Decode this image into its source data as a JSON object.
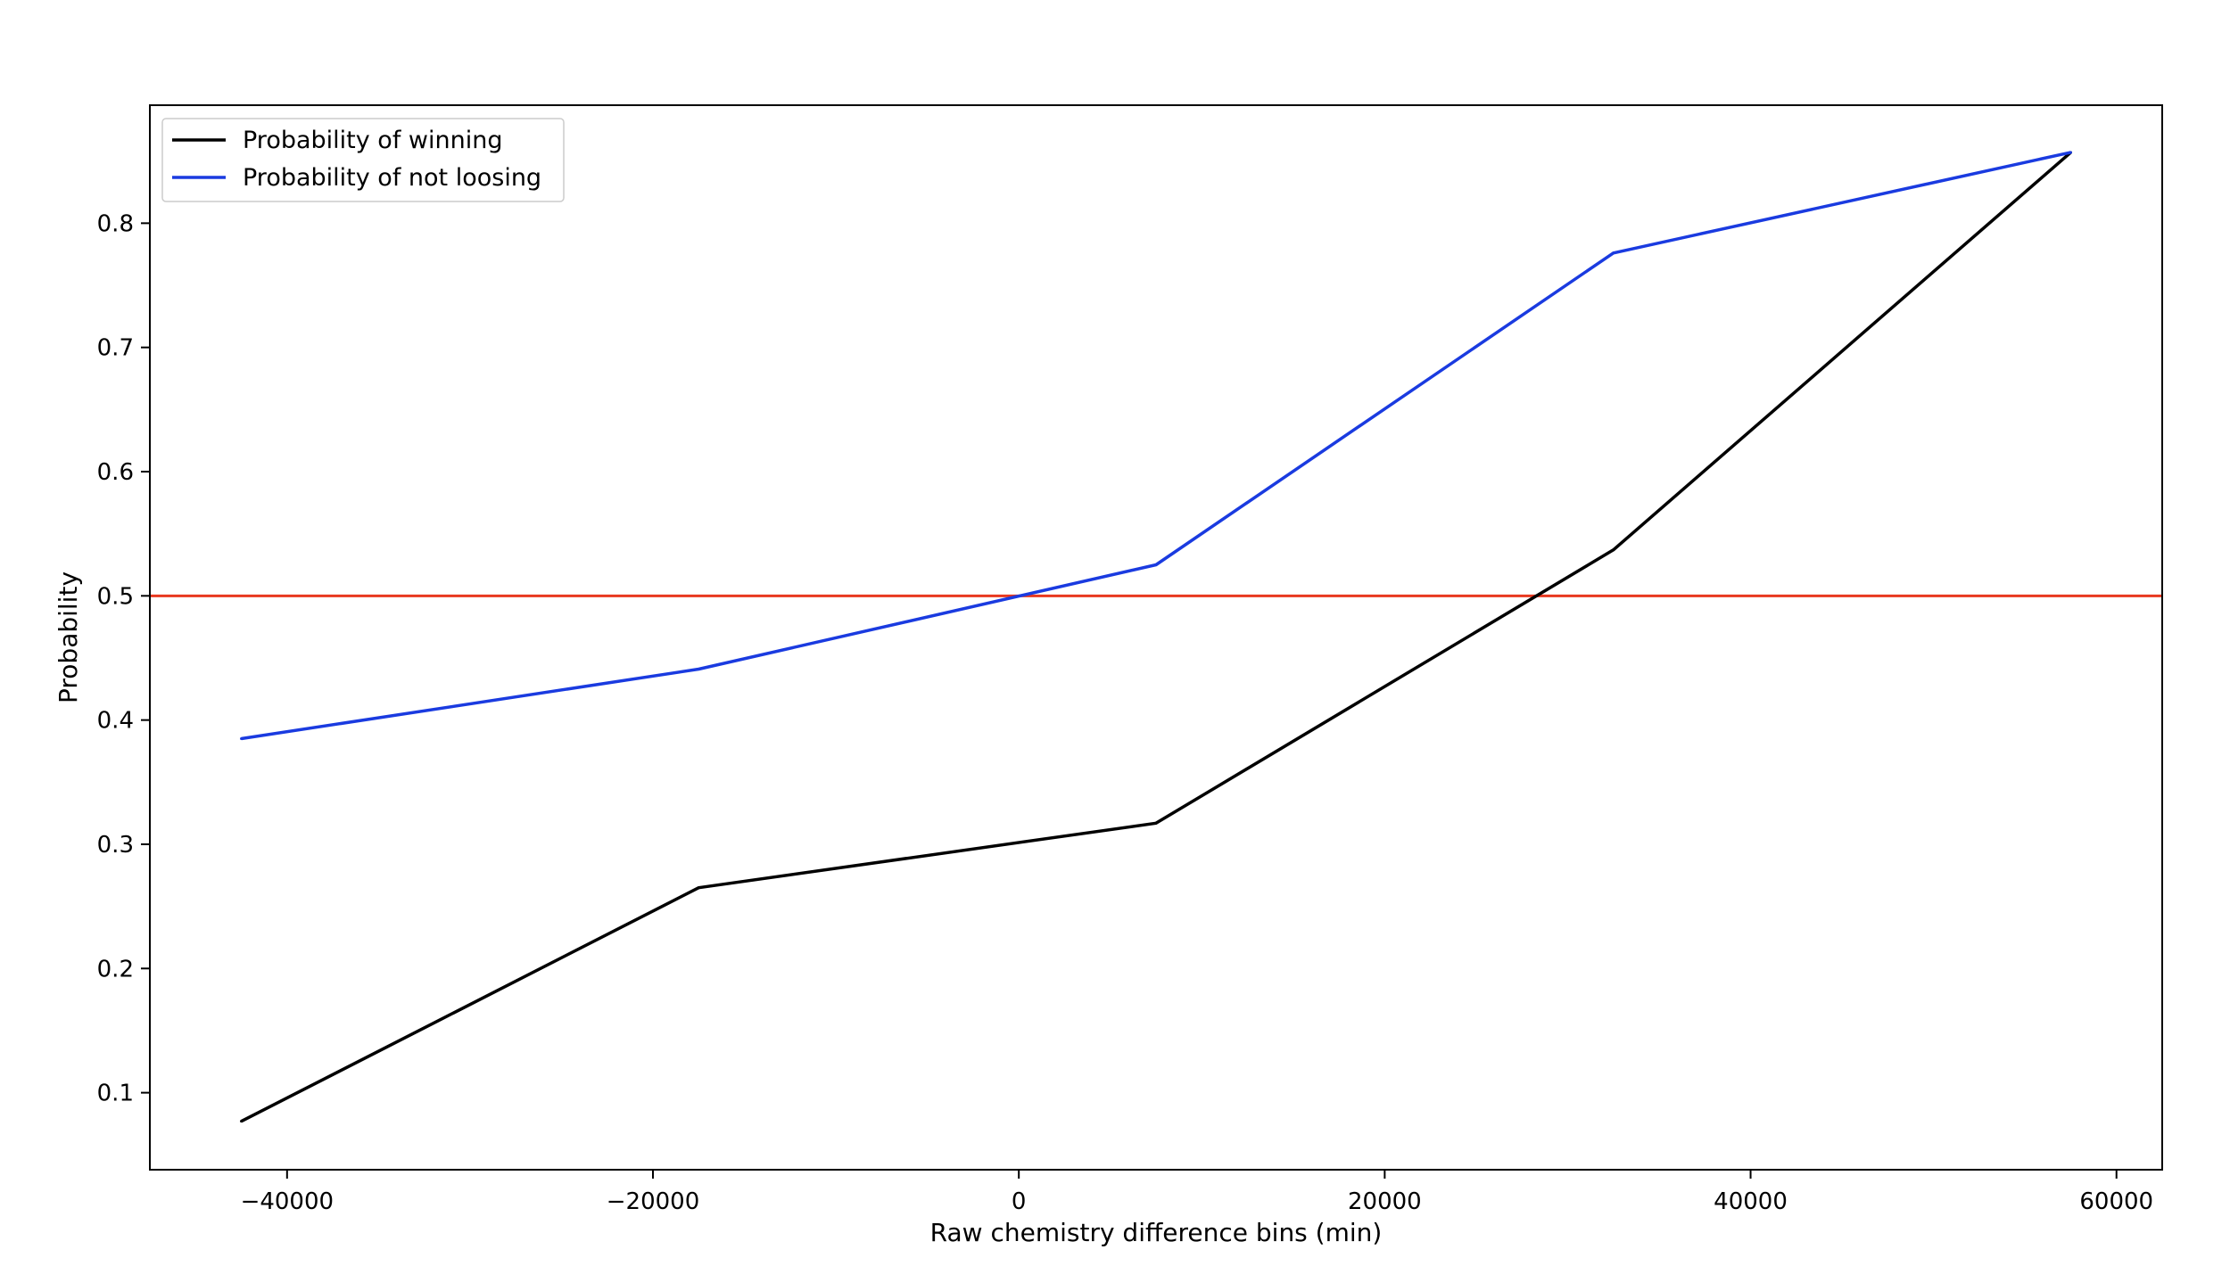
{
  "chart_data": {
    "type": "line",
    "title": "",
    "xlabel": "Raw chemistry difference bins (min)",
    "ylabel": "Probability",
    "xlim": [
      -47500,
      62500
    ],
    "ylim": [
      0.038,
      0.895
    ],
    "xticks": [
      -40000,
      -20000,
      0,
      20000,
      40000,
      60000
    ],
    "xtick_labels": [
      "−40000",
      "−20000",
      "0",
      "20000",
      "40000",
      "60000"
    ],
    "yticks": [
      0.1,
      0.2,
      0.3,
      0.4,
      0.5,
      0.6,
      0.7,
      0.8
    ],
    "ytick_labels": [
      "0.1",
      "0.2",
      "0.3",
      "0.4",
      "0.5",
      "0.6",
      "0.7",
      "0.8"
    ],
    "grid": false,
    "legend_position": "top-left",
    "x": [
      -42500,
      -17500,
      7500,
      32500,
      57500
    ],
    "series": [
      {
        "name": "Probability of winning",
        "color": "#000000",
        "values": [
          0.077,
          0.265,
          0.317,
          0.537,
          0.857
        ]
      },
      {
        "name": "Probability of not loosing",
        "color": "#1a3be0",
        "values": [
          0.385,
          0.441,
          0.525,
          0.776,
          0.857
        ]
      }
    ],
    "reference_line": {
      "y": 0.5,
      "color": "#e8381f"
    }
  }
}
